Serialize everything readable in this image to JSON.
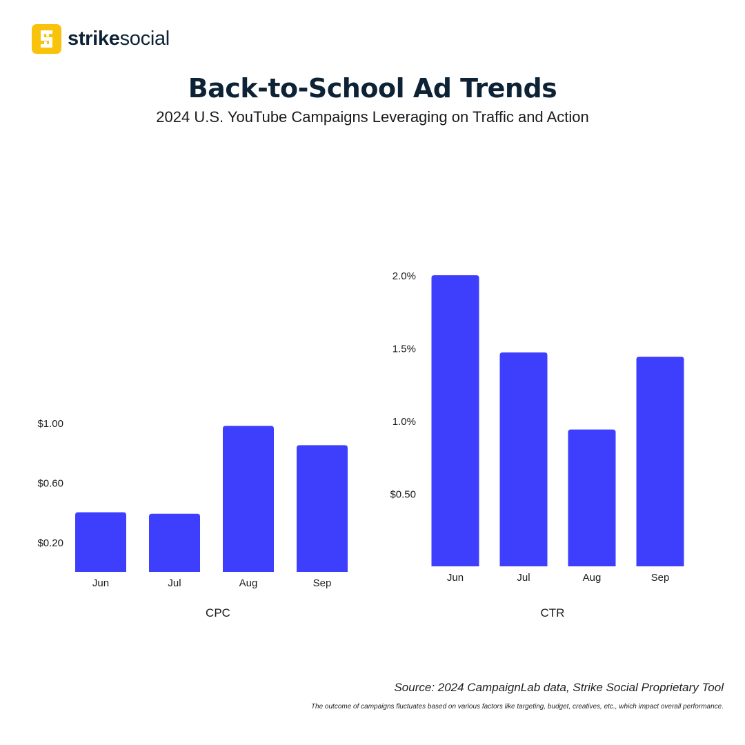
{
  "brand": {
    "name_bold": "strike",
    "name_regular": "social",
    "logo_icon": "strike-social-s-icon",
    "logo_color": "#f8c30a"
  },
  "title": "Back-to-School Ad Trends",
  "subtitle": "2024 U.S. YouTube Campaigns Leveraging on Traffic and Action",
  "chart_data": [
    {
      "type": "bar",
      "title": "",
      "xlabel": "CPC",
      "ylabel": "",
      "categories": [
        "Jun",
        "Jul",
        "Aug",
        "Sep"
      ],
      "values": [
        0.4,
        0.39,
        0.98,
        0.85
      ],
      "ylim": [
        0,
        1.0
      ],
      "yticks": [
        0.2,
        0.6,
        1.0
      ],
      "ytick_labels": [
        "$0.20",
        "$0.60",
        "$1.00"
      ],
      "grid": false,
      "bar_color": "#3e3ffd"
    },
    {
      "type": "bar",
      "title": "",
      "xlabel": "CTR",
      "ylabel": "",
      "categories": [
        "Jun",
        "Jul",
        "Aug",
        "Sep"
      ],
      "values": [
        2.0,
        1.47,
        0.94,
        1.44
      ],
      "ylim": [
        0,
        2.0
      ],
      "yticks": [
        0.5,
        1.0,
        1.5,
        2.0
      ],
      "ytick_labels": [
        "$0.50",
        "1.0%",
        "1.5%",
        "2.0%"
      ],
      "grid": false,
      "bar_color": "#3e3ffd"
    }
  ],
  "footer": {
    "source": "Source: 2024 CampaignLab data, Strike Social Proprietary Tool",
    "note": "The outcome of campaigns fluctuates based on various factors like targeting, budget, creatives, etc., which impact overall performance."
  }
}
